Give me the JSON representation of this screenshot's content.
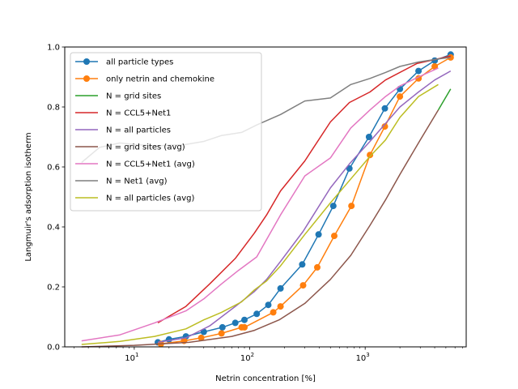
{
  "chart_data": {
    "type": "line",
    "xlabel": "Netrin concentration [%]",
    "ylabel": "Langmuir's adsorption isotherm",
    "xscale": "log",
    "xlim": [
      2.5,
      7500
    ],
    "ylim": [
      0,
      1.0
    ],
    "x_ticks": [
      {
        "value": 10,
        "base": "10",
        "exp": "1"
      },
      {
        "value": 100,
        "base": "10",
        "exp": "2"
      },
      {
        "value": 1000,
        "base": "10",
        "exp": "3"
      }
    ],
    "y_ticks": [
      "0.0",
      "0.2",
      "0.4",
      "0.6",
      "0.8",
      "1.0"
    ],
    "legend_position": "upper-left",
    "series": [
      {
        "name": "all particle types",
        "color": "#1f77b4",
        "marker": true,
        "x": [
          16,
          20,
          28,
          40,
          58,
          75,
          90,
          115,
          145,
          185,
          285,
          395,
          530,
          730,
          1080,
          1480,
          2000,
          2900,
          4000,
          5500
        ],
        "y": [
          0.015,
          0.025,
          0.035,
          0.05,
          0.065,
          0.08,
          0.09,
          0.11,
          0.14,
          0.195,
          0.275,
          0.375,
          0.47,
          0.595,
          0.7,
          0.795,
          0.86,
          0.92,
          0.955,
          0.975
        ]
      },
      {
        "name": "only netrin and chemokine",
        "color": "#ff7f0e",
        "marker": true,
        "x": [
          17,
          27,
          38,
          57,
          85,
          90,
          160,
          185,
          290,
          385,
          540,
          760,
          1100,
          1480,
          2000,
          2900,
          4000,
          5500
        ],
        "y": [
          0.01,
          0.02,
          0.03,
          0.045,
          0.065,
          0.065,
          0.115,
          0.135,
          0.205,
          0.265,
          0.37,
          0.47,
          0.64,
          0.735,
          0.835,
          0.895,
          0.935,
          0.965
        ]
      },
      {
        "name": "N = grid sites",
        "color": "#2ca02c",
        "marker": false,
        "x": [
          4300,
          5500
        ],
        "y": [
          0.79,
          0.86
        ]
      },
      {
        "name": "N = CCL5+Net1",
        "color": "#d62728",
        "marker": false,
        "x": [
          16,
          28,
          45,
          75,
          110,
          140,
          185,
          300,
          500,
          730,
          1100,
          1500,
          2800,
          5500
        ],
        "y": [
          0.08,
          0.135,
          0.21,
          0.295,
          0.38,
          0.44,
          0.52,
          0.62,
          0.75,
          0.815,
          0.85,
          0.89,
          0.945,
          0.97
        ]
      },
      {
        "name": "N = all particles",
        "color": "#9467bd",
        "marker": false,
        "x": [
          16,
          28,
          45,
          75,
          110,
          140,
          185,
          290,
          500,
          730,
          1100,
          1500,
          2000,
          2900,
          4000,
          5500
        ],
        "y": [
          0.015,
          0.03,
          0.07,
          0.135,
          0.185,
          0.225,
          0.285,
          0.385,
          0.53,
          0.61,
          0.685,
          0.745,
          0.8,
          0.85,
          0.89,
          0.92
        ]
      },
      {
        "name": "N = grid sites (avg)",
        "color": "#8c564b",
        "marker": false,
        "x": [
          3.5,
          10,
          30,
          70,
          110,
          180,
          300,
          500,
          750,
          1100,
          1500,
          2000,
          3000,
          4300
        ],
        "y": [
          0.0,
          0.005,
          0.015,
          0.035,
          0.055,
          0.09,
          0.145,
          0.225,
          0.305,
          0.405,
          0.49,
          0.575,
          0.69,
          0.79
        ]
      },
      {
        "name": "N = CCL5+Net1 (avg)",
        "color": "#e377c2",
        "marker": false,
        "x": [
          3.5,
          7.5,
          15,
          28,
          40,
          57,
          80,
          115,
          185,
          300,
          500,
          750,
          1100,
          1500,
          2000,
          2900,
          4300
        ],
        "y": [
          0.02,
          0.04,
          0.08,
          0.12,
          0.16,
          0.21,
          0.255,
          0.3,
          0.44,
          0.57,
          0.63,
          0.73,
          0.79,
          0.835,
          0.87,
          0.9,
          0.93
        ]
      },
      {
        "name": "N = Net1 (avg)",
        "color": "#7f7f7f",
        "marker": false,
        "x": [
          3.5,
          5,
          7.5,
          10,
          15,
          28,
          40,
          57,
          85,
          115,
          185,
          300,
          500,
          750,
          1100,
          1500,
          2000,
          2900,
          4300,
          5500
        ],
        "y": [
          0.615,
          0.665,
          0.68,
          0.675,
          0.67,
          0.675,
          0.685,
          0.705,
          0.715,
          0.74,
          0.775,
          0.82,
          0.83,
          0.875,
          0.895,
          0.915,
          0.935,
          0.95,
          0.96,
          0.965
        ]
      },
      {
        "name": "N = all particles (avg)",
        "color": "#bcbd22",
        "marker": false,
        "x": [
          3.5,
          7.5,
          15,
          28,
          40,
          57,
          85,
          110,
          140,
          185,
          300,
          500,
          750,
          1100,
          1500,
          2000,
          2900,
          4300
        ],
        "y": [
          0.008,
          0.018,
          0.035,
          0.06,
          0.09,
          0.115,
          0.15,
          0.19,
          0.22,
          0.27,
          0.375,
          0.48,
          0.56,
          0.635,
          0.69,
          0.765,
          0.835,
          0.875
        ]
      }
    ]
  }
}
